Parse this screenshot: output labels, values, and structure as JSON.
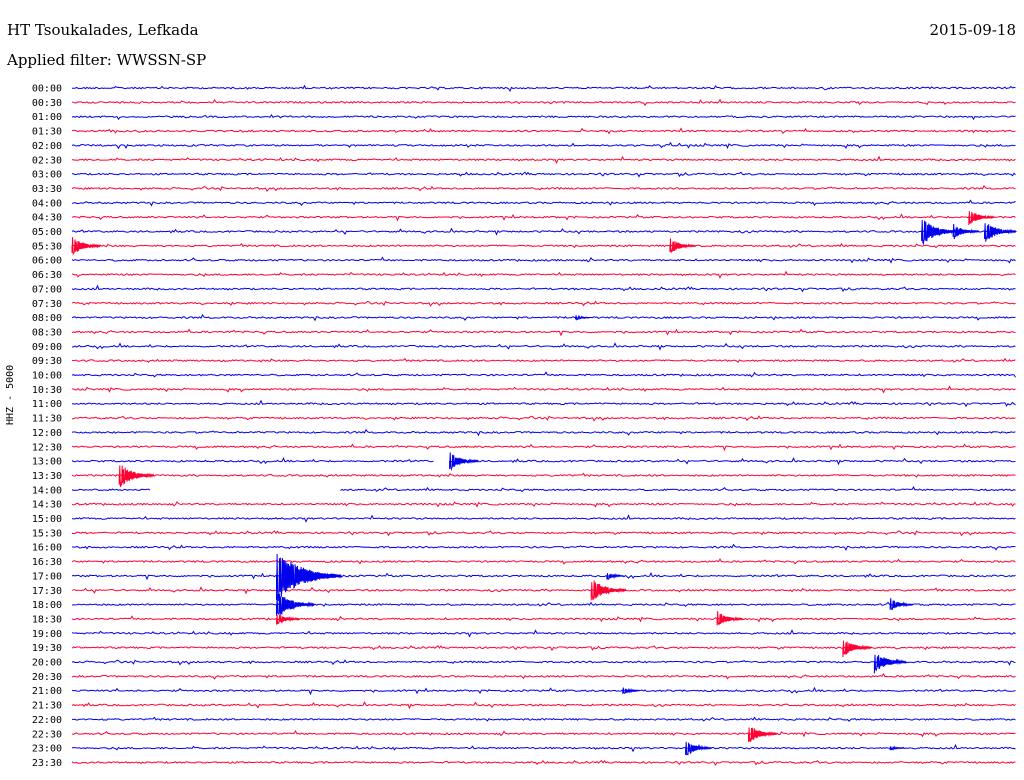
{
  "header": {
    "station": "HT Tsoukalades, Lefkada",
    "date": "2015-09-18",
    "filter": "Applied filter: WWSSN-SP"
  },
  "chart_data": {
    "type": "line",
    "title": "HT Tsoukalades, Lefkada",
    "ylabel": "HHZ - 5000",
    "colors": {
      "odd": "#0000ee",
      "even": "#ff0033"
    },
    "rows": [
      "00:00",
      "00:30",
      "01:00",
      "01:30",
      "02:00",
      "02:30",
      "03:00",
      "03:30",
      "04:00",
      "04:30",
      "05:00",
      "05:30",
      "06:00",
      "06:30",
      "07:00",
      "07:30",
      "08:00",
      "08:30",
      "09:00",
      "09:30",
      "10:00",
      "10:30",
      "11:00",
      "11:30",
      "12:00",
      "12:30",
      "13:00",
      "13:30",
      "14:00",
      "14:30",
      "15:00",
      "15:30",
      "16:00",
      "16:30",
      "17:00",
      "17:30",
      "18:00",
      "18:30",
      "19:00",
      "19:30",
      "20:00",
      "20:30",
      "21:00",
      "21:30",
      "22:00",
      "22:30",
      "23:00",
      "23:30"
    ],
    "events": [
      {
        "row": "05:00",
        "minute": 28,
        "amplitude": 0.6
      },
      {
        "row": "05:00",
        "minute": 27,
        "amplitude": 1.0
      },
      {
        "row": "05:00",
        "minute": 29,
        "amplitude": 0.8
      },
      {
        "row": "05:30",
        "minute": 0,
        "amplitude": 0.7
      },
      {
        "row": "05:30",
        "minute": 19,
        "amplitude": 0.6
      },
      {
        "row": "04:30",
        "minute": 28.5,
        "amplitude": 0.6
      },
      {
        "row": "08:00",
        "minute": 16,
        "amplitude": 0.2
      },
      {
        "row": "13:00",
        "minute": 12,
        "amplitude": 0.7
      },
      {
        "row": "13:30",
        "minute": 1.5,
        "amplitude": 0.9
      },
      {
        "row": "17:00",
        "minute": 6.5,
        "amplitude": 1.9
      },
      {
        "row": "17:00",
        "minute": 17,
        "amplitude": 0.3
      },
      {
        "row": "17:30",
        "minute": 16.5,
        "amplitude": 0.9
      },
      {
        "row": "18:00",
        "minute": 6.5,
        "amplitude": 1.0
      },
      {
        "row": "18:00",
        "minute": 26,
        "amplitude": 0.5
      },
      {
        "row": "18:30",
        "minute": 6.5,
        "amplitude": 0.5
      },
      {
        "row": "18:30",
        "minute": 20.5,
        "amplitude": 0.6
      },
      {
        "row": "19:30",
        "minute": 24.5,
        "amplitude": 0.7
      },
      {
        "row": "20:00",
        "minute": 25.5,
        "amplitude": 0.8
      },
      {
        "row": "21:00",
        "minute": 17.5,
        "amplitude": 0.3
      },
      {
        "row": "22:30",
        "minute": 21.5,
        "amplitude": 0.7
      },
      {
        "row": "23:00",
        "minute": 19.5,
        "amplitude": 0.6
      },
      {
        "row": "23:00",
        "minute": 26,
        "amplitude": 0.2
      }
    ],
    "gaps": [
      {
        "row": "13:00",
        "from_minute": 11.5,
        "to_minute": 12
      },
      {
        "row": "14:00",
        "from_minute": 2.5,
        "to_minute": 8.5
      }
    ]
  }
}
